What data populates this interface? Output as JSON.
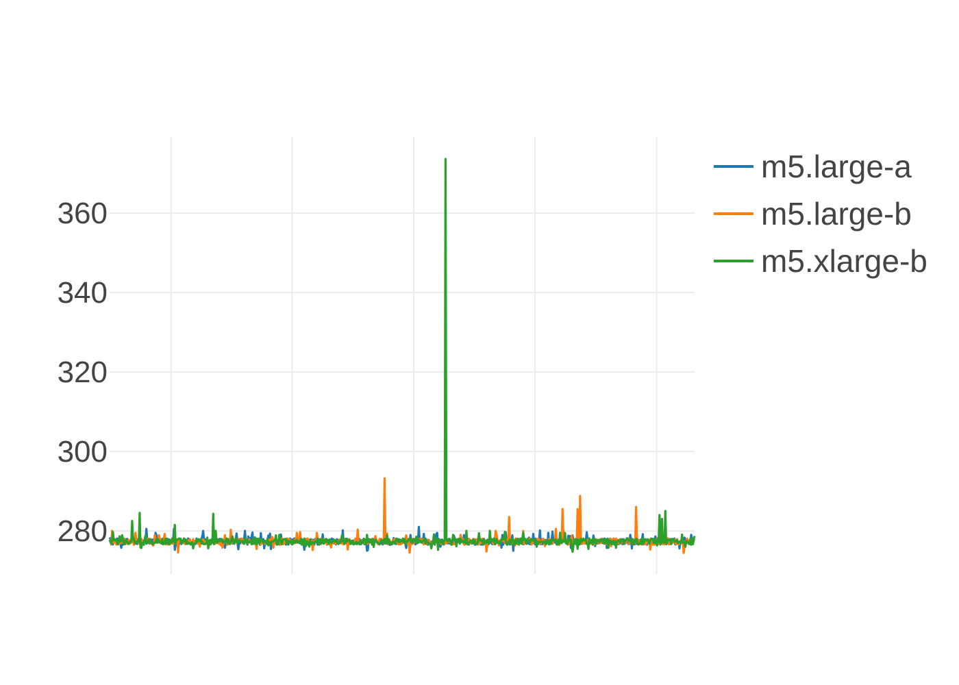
{
  "chart_data": {
    "type": "line",
    "title": "",
    "xlabel": "",
    "ylabel": "",
    "x_tick_labels_shown": false,
    "x_range": [
      0,
      1000
    ],
    "x_gridlines": [
      105,
      312,
      520,
      727,
      935
    ],
    "ylim": [
      270,
      380
    ],
    "y_ticks": [
      280,
      300,
      320,
      340,
      360
    ],
    "grid": true,
    "legend": "top-right outside plot",
    "series": [
      {
        "name": "m5.large-a",
        "color": "#1f77b4",
        "baseline": 277.3,
        "peaks": [
          [
            63,
            280.5
          ],
          [
            78,
            279.5
          ],
          [
            110,
            280.5
          ],
          [
            160,
            280
          ],
          [
            232,
            280
          ],
          [
            265,
            275.6
          ],
          [
            440,
            275
          ],
          [
            528,
            281
          ],
          [
            560,
            279.5
          ],
          [
            690,
            275
          ],
          [
            750,
            279.5
          ],
          [
            850,
            275.7
          ],
          [
            890,
            279
          ],
          [
            975,
            275.6
          ],
          [
            995,
            279
          ]
        ]
      },
      {
        "name": "m5.large-b",
        "color": "#ff7f0e",
        "baseline": 277.3,
        "peaks": [
          [
            5,
            280
          ],
          [
            45,
            279.5
          ],
          [
            320,
            279.5
          ],
          [
            355,
            279.5
          ],
          [
            470,
            293.2
          ],
          [
            600,
            279
          ],
          [
            660,
            280
          ],
          [
            683,
            283.5
          ],
          [
            707,
            280
          ],
          [
            763,
            280.5
          ],
          [
            775,
            285.5
          ],
          [
            800,
            285.5
          ],
          [
            804,
            288.8
          ],
          [
            900,
            286
          ],
          [
            983,
            276.2
          ]
        ]
      },
      {
        "name": "m5.xlarge-b",
        "color": "#2ca02c",
        "baseline": 277.3,
        "peaks": [
          [
            38,
            282.5
          ],
          [
            52,
            284.5
          ],
          [
            112,
            281.5
          ],
          [
            177,
            284.3
          ],
          [
            290,
            279
          ],
          [
            440,
            279
          ],
          [
            575,
            373.6
          ],
          [
            610,
            280
          ],
          [
            650,
            280
          ],
          [
            730,
            276
          ],
          [
            800,
            275.5
          ],
          [
            940,
            284
          ],
          [
            945,
            283
          ],
          [
            950,
            285
          ],
          [
            985,
            276
          ]
        ]
      }
    ]
  }
}
